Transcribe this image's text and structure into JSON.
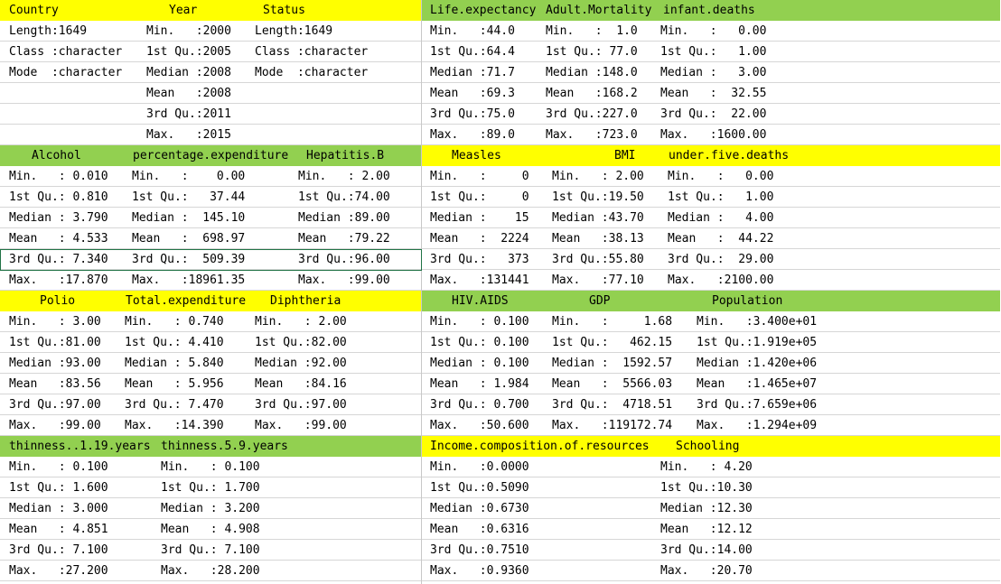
{
  "colors": {
    "yellow": "#FFFF00",
    "green": "#92D050",
    "grid": "#d6d6d6",
    "selection": "#217346"
  },
  "blocks": [
    {
      "header": [
        "Country",
        "Year",
        "Status"
      ],
      "header_color": "yellow",
      "rows": [
        [
          "Length:1649",
          "Min.   :2000",
          "Length:1649"
        ],
        [
          "Class :character",
          "1st Qu.:2005",
          "Class :character"
        ],
        [
          "Mode  :character",
          "Median :2008",
          "Mode  :character"
        ],
        [
          "",
          "Mean   :2008",
          ""
        ],
        [
          "",
          "3rd Qu.:2011",
          ""
        ],
        [
          "",
          "Max.   :2015",
          ""
        ]
      ]
    },
    {
      "header": [
        "Life.expectancy",
        "Adult.Mortality",
        "infant.deaths"
      ],
      "header_color": "green",
      "rows": [
        [
          "Min.   :44.0",
          "Min.   :  1.0",
          "Min.   :   0.00"
        ],
        [
          "1st Qu.:64.4",
          "1st Qu.: 77.0",
          "1st Qu.:   1.00"
        ],
        [
          "Median :71.7",
          "Median :148.0",
          "Median :   3.00"
        ],
        [
          "Mean   :69.3",
          "Mean   :168.2",
          "Mean   :  32.55"
        ],
        [
          "3rd Qu.:75.0",
          "3rd Qu.:227.0",
          "3rd Qu.:  22.00"
        ],
        [
          "Max.   :89.0",
          "Max.   :723.0",
          "Max.   :1600.00"
        ]
      ]
    },
    {
      "header": [
        "Alcohol",
        "percentage.expenditure",
        "Hepatitis.B"
      ],
      "header_color": "green",
      "rows": [
        [
          "Min.   : 0.010",
          "Min.   :    0.00",
          "Min.   : 2.00"
        ],
        [
          "1st Qu.: 0.810",
          "1st Qu.:   37.44",
          "1st Qu.:74.00"
        ],
        [
          "Median : 3.790",
          "Median :  145.10",
          "Median :89.00"
        ],
        [
          "Mean   : 4.533",
          "Mean   :  698.97",
          "Mean   :79.22"
        ],
        [
          "3rd Qu.: 7.340",
          "3rd Qu.:  509.39",
          "3rd Qu.:96.00"
        ],
        [
          "Max.   :17.870",
          "Max.   :18961.35",
          "Max.   :99.00"
        ]
      ]
    },
    {
      "header": [
        "Measles",
        "BMI",
        "under.five.deaths"
      ],
      "header_color": "yellow",
      "rows": [
        [
          "Min.   :     0",
          "Min.   : 2.00",
          "Min.   :   0.00"
        ],
        [
          "1st Qu.:     0",
          "1st Qu.:19.50",
          "1st Qu.:   1.00"
        ],
        [
          "Median :    15",
          "Median :43.70",
          "Median :   4.00"
        ],
        [
          "Mean   :  2224",
          "Mean   :38.13",
          "Mean   :  44.22"
        ],
        [
          "3rd Qu.:   373",
          "3rd Qu.:55.80",
          "3rd Qu.:  29.00"
        ],
        [
          "Max.   :131441",
          "Max.   :77.10",
          "Max.   :2100.00"
        ]
      ]
    },
    {
      "header": [
        "Polio",
        "Total.expenditure",
        "Diphtheria"
      ],
      "header_color": "yellow",
      "rows": [
        [
          "Min.   : 3.00",
          "Min.   : 0.740",
          "Min.   : 2.00"
        ],
        [
          "1st Qu.:81.00",
          "1st Qu.: 4.410",
          "1st Qu.:82.00"
        ],
        [
          "Median :93.00",
          "Median : 5.840",
          "Median :92.00"
        ],
        [
          "Mean   :83.56",
          "Mean   : 5.956",
          "Mean   :84.16"
        ],
        [
          "3rd Qu.:97.00",
          "3rd Qu.: 7.470",
          "3rd Qu.:97.00"
        ],
        [
          "Max.   :99.00",
          "Max.   :14.390",
          "Max.   :99.00"
        ]
      ]
    },
    {
      "header": [
        "HIV.AIDS",
        "GDP",
        "Population"
      ],
      "header_color": "green",
      "rows": [
        [
          "Min.   : 0.100",
          "Min.   :     1.68",
          "Min.   :3.400e+01"
        ],
        [
          "1st Qu.: 0.100",
          "1st Qu.:   462.15",
          "1st Qu.:1.919e+05"
        ],
        [
          "Median : 0.100",
          "Median :  1592.57",
          "Median :1.420e+06"
        ],
        [
          "Mean   : 1.984",
          "Mean   :  5566.03",
          "Mean   :1.465e+07"
        ],
        [
          "3rd Qu.: 0.700",
          "3rd Qu.:  4718.51",
          "3rd Qu.:7.659e+06"
        ],
        [
          "Max.   :50.600",
          "Max.   :119172.74",
          "Max.   :1.294e+09"
        ]
      ]
    },
    {
      "header": [
        "thinness..1.19.years",
        "thinness.5.9.years"
      ],
      "header_color": "green",
      "rows": [
        [
          "Min.   : 0.100",
          "Min.   : 0.100"
        ],
        [
          "1st Qu.: 1.600",
          "1st Qu.: 1.700"
        ],
        [
          "Median : 3.000",
          "Median : 3.200"
        ],
        [
          "Mean   : 4.851",
          "Mean   : 4.908"
        ],
        [
          "3rd Qu.: 7.100",
          "3rd Qu.: 7.100"
        ],
        [
          "Max.   :27.200",
          "Max.   :28.200"
        ]
      ]
    },
    {
      "header": [
        "Income.composition.of.resources",
        "Schooling"
      ],
      "header_color": "yellow",
      "rows": [
        [
          "Min.   :0.0000",
          "Min.   : 4.20"
        ],
        [
          "1st Qu.:0.5090",
          "1st Qu.:10.30"
        ],
        [
          "Median :0.6730",
          "Median :12.30"
        ],
        [
          "Mean   :0.6316",
          "Mean   :12.12"
        ],
        [
          "3rd Qu.:0.7510",
          "3rd Qu.:14.00"
        ],
        [
          "Max.   :0.9360",
          "Max.   :20.70"
        ]
      ]
    }
  ]
}
